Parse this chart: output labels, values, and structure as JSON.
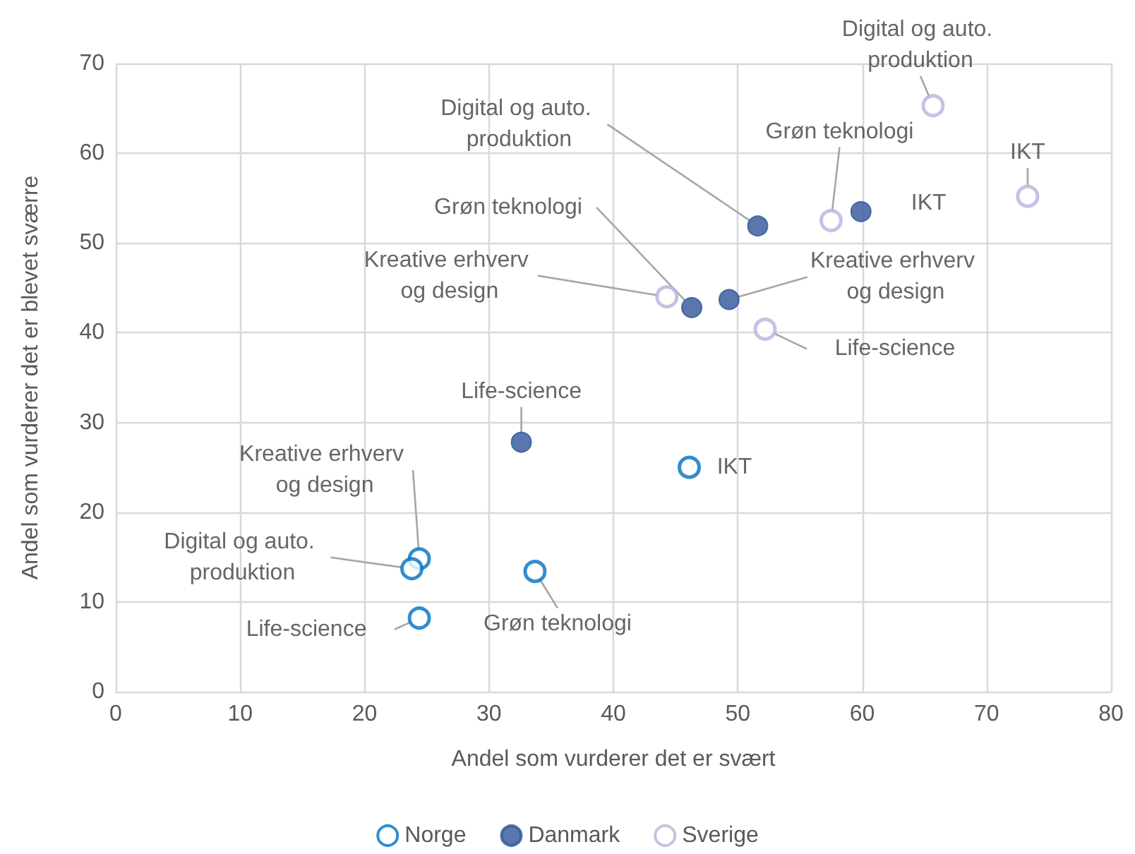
{
  "chart_data": {
    "type": "scatter",
    "xlabel": "Andel som vurderer det er svært",
    "ylabel": "Andel som vurderer det er blevet sværre",
    "xlim": [
      0,
      80
    ],
    "xticks": [
      0,
      10,
      20,
      30,
      40,
      50,
      60,
      70,
      80
    ],
    "ylim": [
      0,
      70
    ],
    "yticks": [
      0,
      10,
      20,
      30,
      40,
      50,
      60,
      70
    ],
    "grid": true,
    "legend": "bottom",
    "marker": "circle",
    "series": [
      {
        "name": "Norge",
        "color": "#0070c0",
        "x": [
          46.1,
          33.7,
          24.4,
          23.8,
          24.4
        ],
        "values": [
          25.0,
          13.4,
          14.8,
          13.7,
          8.2
        ],
        "value_labels": [
          "IKT",
          "Grøn teknologi",
          "Kreative erhverv og design",
          "Digital og auto. produktion",
          "Life-science"
        ]
      },
      {
        "name": "Danmark",
        "color": "#2f5597",
        "x": [
          32.6,
          46.3,
          49.3,
          51.6,
          59.9
        ],
        "values": [
          27.8,
          42.8,
          43.7,
          51.9,
          53.5
        ],
        "value_labels": [
          "Life-science",
          "Grøn teknologi",
          "Kreative erhverv og design",
          "Digital og auto. produktion",
          "IKT"
        ]
      },
      {
        "name": "Sverige",
        "color": "#b4b4e0",
        "x": [
          44.3,
          52.2,
          57.5,
          65.7,
          73.3
        ],
        "values": [
          44.0,
          40.4,
          52.5,
          65.3,
          55.2
        ],
        "value_labels": [
          "Kreative erhverv og design",
          "Life-science",
          "Grøn teknologi",
          "Digital og auto. produktion",
          "IKT"
        ]
      }
    ]
  }
}
